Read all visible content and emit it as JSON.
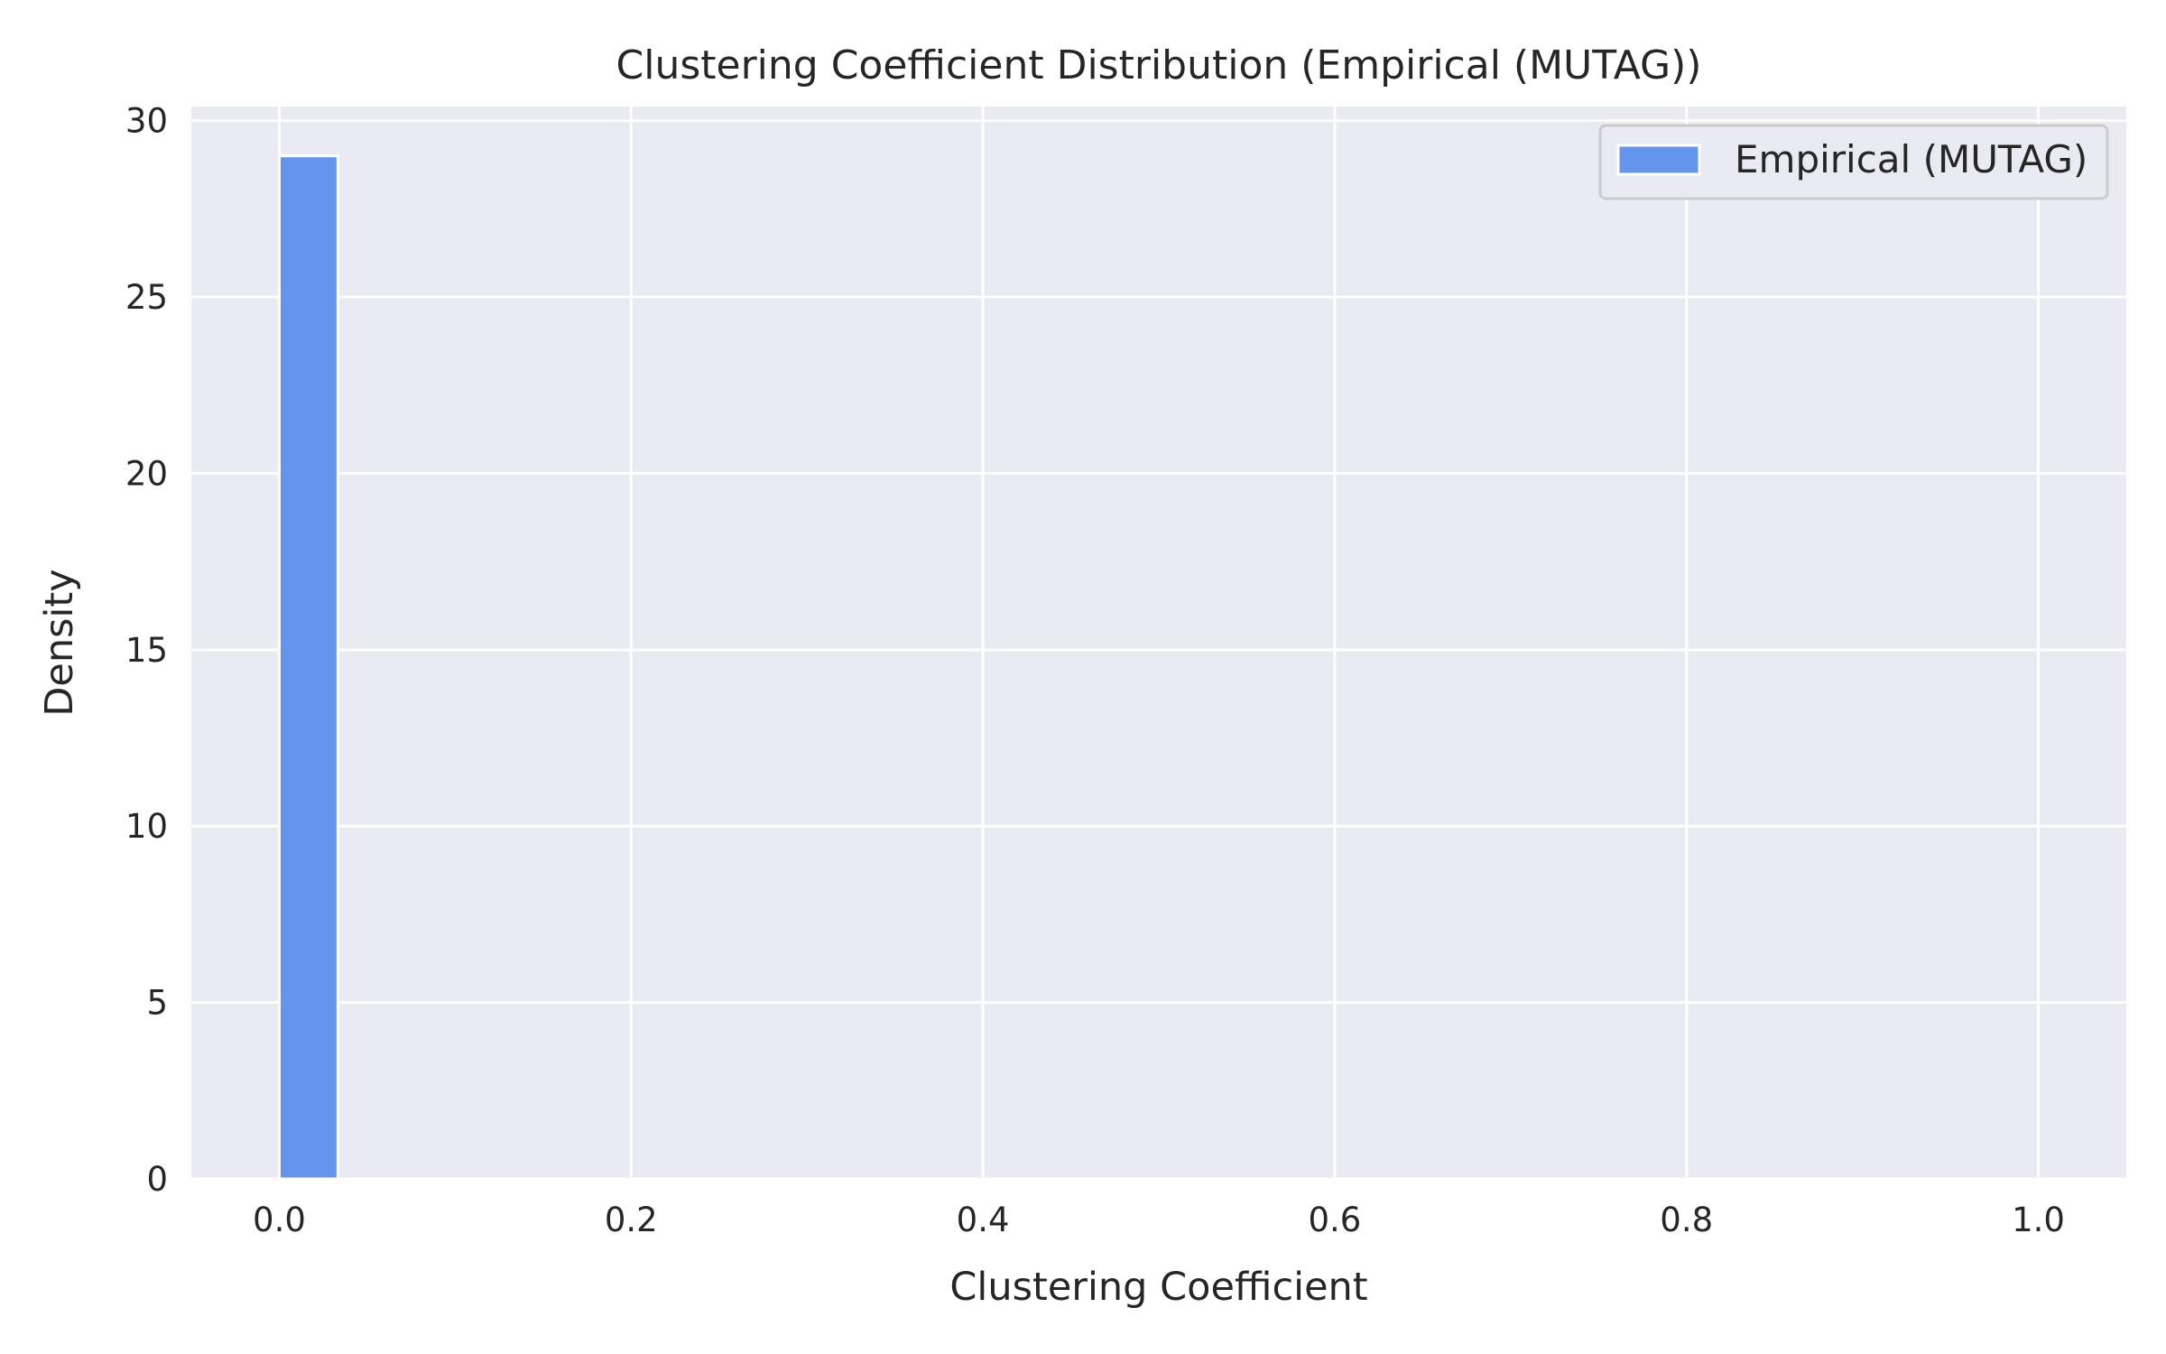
{
  "chart_data": {
    "type": "bar",
    "title": "Clustering Coefficient Distribution (Empirical (MUTAG))",
    "xlabel": "Clustering Coefficient",
    "ylabel": "Density",
    "xlim": [
      -0.05,
      1.05
    ],
    "ylim": [
      0,
      30.4
    ],
    "x_ticks": [
      0.0,
      0.2,
      0.4,
      0.6,
      0.8,
      1.0
    ],
    "x_tick_labels": [
      "0.0",
      "0.2",
      "0.4",
      "0.6",
      "0.8",
      "1.0"
    ],
    "y_ticks": [
      0,
      5,
      10,
      15,
      20,
      25,
      30
    ],
    "y_tick_labels": [
      "0",
      "5",
      "10",
      "15",
      "20",
      "25",
      "30"
    ],
    "grid": true,
    "legend_position": "top-right",
    "series": [
      {
        "name": "Empirical (MUTAG)",
        "color": "#6495ED",
        "bins": [
          {
            "x0": 0.0,
            "x1": 0.0333,
            "value": 29.0
          }
        ]
      }
    ]
  },
  "colors": {
    "plot_background": "#EAEAF2",
    "grid": "#FFFFFF",
    "text": "#262626",
    "bar_edge": "#FFFFFF",
    "legend_background": "#EAEAF2",
    "legend_border": "#CCCCCC"
  }
}
